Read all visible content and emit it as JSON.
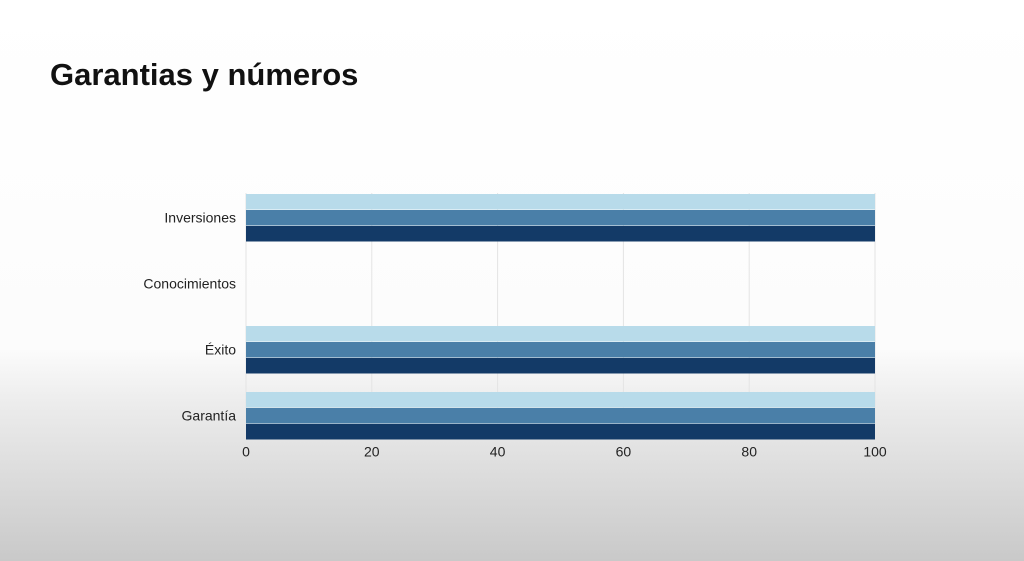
{
  "chart_data": {
    "type": "bar",
    "orientation": "horizontal",
    "title": "Garantias y números",
    "categories": [
      "Inversiones",
      "Conocimientos",
      "Éxito",
      "Garantía"
    ],
    "series": [
      {
        "color": "#b8dbea",
        "values": [
          100,
          0,
          100,
          100
        ]
      },
      {
        "color": "#4a7fa8",
        "values": [
          100,
          0,
          100,
          100
        ]
      },
      {
        "color": "#133a67",
        "values": [
          100,
          0,
          100,
          100
        ]
      }
    ],
    "xlim": [
      0,
      100
    ],
    "xticks": [
      0,
      20,
      40,
      60,
      80,
      100
    ],
    "grid": true
  }
}
